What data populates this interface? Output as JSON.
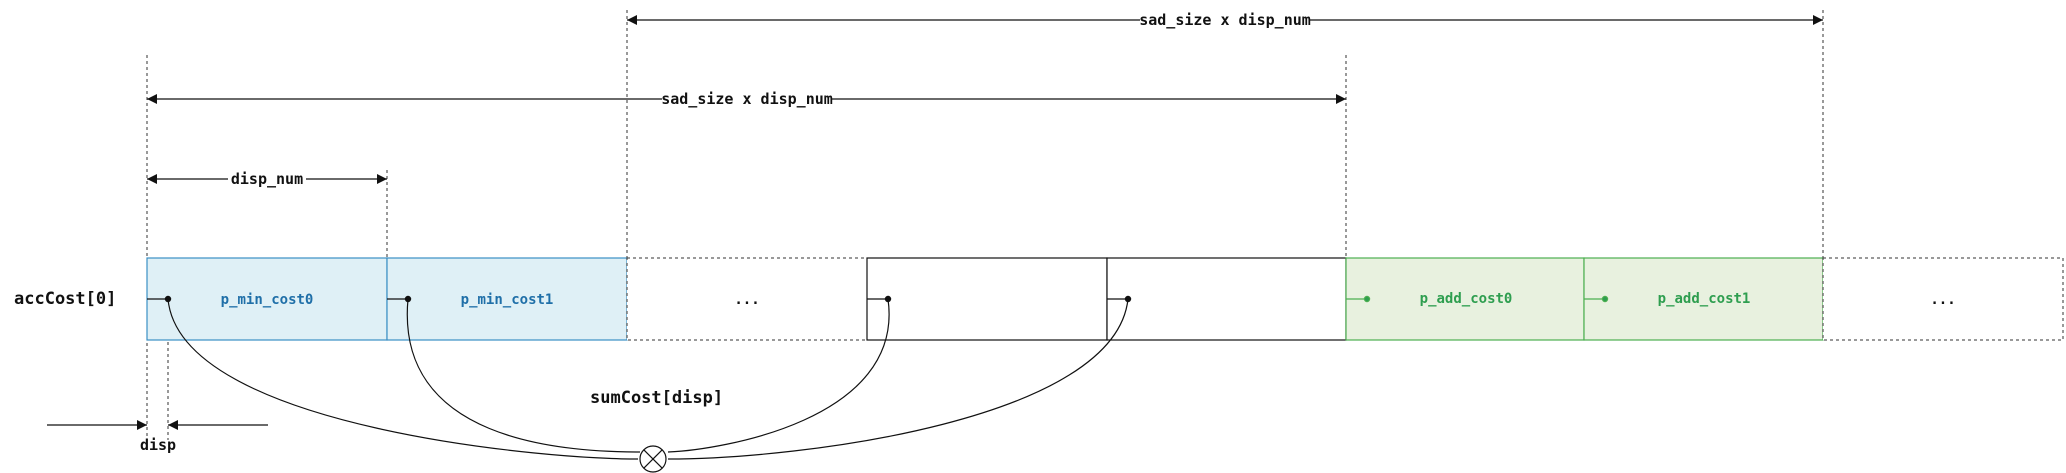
{
  "row_label": "accCost[0]",
  "dimensions": {
    "top": "sad_size x disp_num",
    "middle": "sad_size x disp_num",
    "small": "disp_num",
    "disp": "disp"
  },
  "cells": [
    {
      "label": "p_min_cost0",
      "style": "blue"
    },
    {
      "label": "p_min_cost1",
      "style": "blue"
    },
    {
      "label": "...",
      "style": "dashed"
    },
    {
      "label": "",
      "style": "solid"
    },
    {
      "label": "",
      "style": "solid"
    },
    {
      "label": "p_add_cost0",
      "style": "green"
    },
    {
      "label": "p_add_cost1",
      "style": "green"
    },
    {
      "label": "...",
      "style": "dashed"
    }
  ],
  "sum_label": "sumCost[disp]",
  "colors": {
    "blue_fill": "#dff0f6",
    "blue_stroke": "#3a8fc4",
    "blue_text": "#1f6fa8",
    "green_fill": "#e8f1df",
    "green_stroke": "#4caf50",
    "green_text": "#2e9e4f",
    "line": "#111111"
  }
}
